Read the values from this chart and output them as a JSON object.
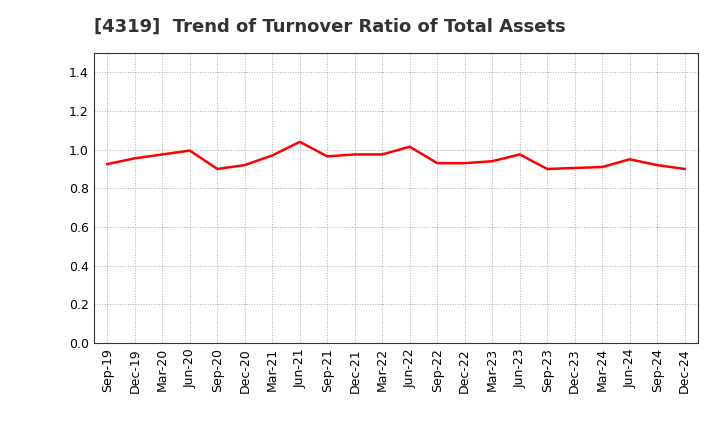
{
  "title": "[4319]  Trend of Turnover Ratio of Total Assets",
  "title_fontsize": 13,
  "title_color": "#333333",
  "line_color": "#FF0000",
  "line_width": 1.8,
  "background_color": "#FFFFFF",
  "grid_color": "#AAAAAA",
  "ylim": [
    0.0,
    1.5
  ],
  "yticks": [
    0.0,
    0.2,
    0.4,
    0.6,
    0.8,
    1.0,
    1.2,
    1.4
  ],
  "x_labels": [
    "Sep-19",
    "Dec-19",
    "Mar-20",
    "Jun-20",
    "Sep-20",
    "Dec-20",
    "Mar-21",
    "Jun-21",
    "Sep-21",
    "Dec-21",
    "Mar-22",
    "Jun-22",
    "Sep-22",
    "Dec-22",
    "Mar-23",
    "Jun-23",
    "Sep-23",
    "Dec-23",
    "Mar-24",
    "Jun-24",
    "Sep-24",
    "Dec-24"
  ],
  "values": [
    0.925,
    0.955,
    0.975,
    0.995,
    0.9,
    0.92,
    0.97,
    1.04,
    0.965,
    0.975,
    0.975,
    1.015,
    0.93,
    0.93,
    0.94,
    0.975,
    0.9,
    0.905,
    0.91,
    0.95,
    0.92,
    0.9
  ],
  "tick_fontsize": 9,
  "spine_color": "#333333"
}
